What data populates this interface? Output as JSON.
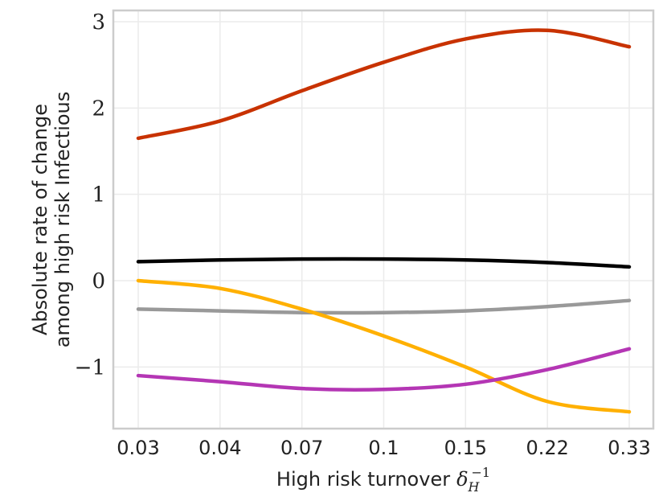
{
  "chart_data": {
    "type": "line",
    "title": "",
    "xlabel": "High risk turnover",
    "xlabel_math": "δ",
    "xlabel_math_sub": "H",
    "xlabel_math_sup": "−1",
    "ylabel_line1": "Absolute rate of change",
    "ylabel_line2": "among high risk Infectious",
    "x": [
      0.03,
      0.04,
      0.07,
      0.1,
      0.15,
      0.22,
      0.33
    ],
    "x_tick_labels": [
      "0.03",
      "0.04",
      "0.07",
      "0.1",
      "0.15",
      "0.22",
      "0.33"
    ],
    "y_ticks": [
      3,
      2,
      1,
      0,
      -1
    ],
    "y_tick_labels": [
      "3",
      "2",
      "1",
      "0",
      "−1"
    ],
    "ylim": [
      -1.7,
      3.1
    ],
    "grid": true,
    "series": [
      {
        "name": "red",
        "color": "#c83200",
        "values": [
          1.65,
          1.85,
          2.2,
          2.53,
          2.8,
          2.9,
          2.71
        ]
      },
      {
        "name": "black",
        "color": "#000000",
        "values": [
          0.22,
          0.24,
          0.25,
          0.25,
          0.24,
          0.21,
          0.16
        ]
      },
      {
        "name": "gray",
        "color": "#999999",
        "values": [
          -0.33,
          -0.35,
          -0.37,
          -0.37,
          -0.35,
          -0.3,
          -0.23
        ]
      },
      {
        "name": "orange",
        "color": "#ffb000",
        "values": [
          0.0,
          -0.09,
          -0.33,
          -0.64,
          -1.0,
          -1.4,
          -1.52
        ]
      },
      {
        "name": "purple",
        "color": "#b436b4",
        "values": [
          -1.1,
          -1.17,
          -1.25,
          -1.26,
          -1.2,
          -1.03,
          -0.79
        ]
      }
    ]
  }
}
